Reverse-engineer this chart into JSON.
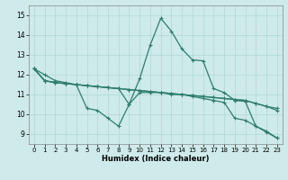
{
  "xlabel": "Humidex (Indice chaleur)",
  "bg_color": "#ceeaea",
  "line_color": "#2e7d6e",
  "xlim": [
    -0.5,
    23.5
  ],
  "ylim": [
    8.5,
    15.5
  ],
  "xticks": [
    0,
    1,
    2,
    3,
    4,
    5,
    6,
    7,
    8,
    9,
    10,
    11,
    12,
    13,
    14,
    15,
    16,
    17,
    18,
    19,
    20,
    21,
    22,
    23
  ],
  "yticks": [
    9,
    10,
    11,
    12,
    13,
    14,
    15
  ],
  "series": [
    [
      12.3,
      12.0,
      11.7,
      11.6,
      11.5,
      10.3,
      10.2,
      9.8,
      9.4,
      10.5,
      11.8,
      13.5,
      14.85,
      14.2,
      13.3,
      12.75,
      12.7,
      11.3,
      11.1,
      10.7,
      10.65,
      9.4,
      9.1,
      8.8
    ],
    [
      12.3,
      11.7,
      11.6,
      11.55,
      11.5,
      11.45,
      11.4,
      11.35,
      11.3,
      11.25,
      11.2,
      11.15,
      11.1,
      11.05,
      11.0,
      10.95,
      10.9,
      10.85,
      10.8,
      10.75,
      10.7,
      10.55,
      10.4,
      10.3
    ],
    [
      12.3,
      11.7,
      11.6,
      11.55,
      11.5,
      11.45,
      11.4,
      11.35,
      11.3,
      11.25,
      11.2,
      11.15,
      11.1,
      11.05,
      11.0,
      10.95,
      10.9,
      10.85,
      10.8,
      10.75,
      10.7,
      10.55,
      10.4,
      10.2
    ],
    [
      12.3,
      11.7,
      11.6,
      11.55,
      11.5,
      11.45,
      11.4,
      11.35,
      11.3,
      10.5,
      11.1,
      11.1,
      11.1,
      11.0,
      11.0,
      10.9,
      10.8,
      10.7,
      10.6,
      9.8,
      9.7,
      9.4,
      9.15,
      8.8
    ]
  ]
}
